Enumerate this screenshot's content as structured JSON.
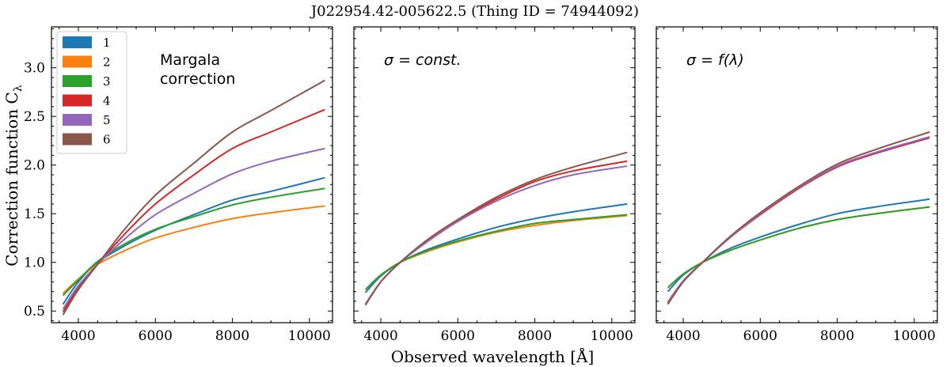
{
  "figure": {
    "suptitle": "J022954.42-005622.5   (Thing ID = 74944092)",
    "xlabel": "Observed wavelength [Å]",
    "ylabel": "Correction function C",
    "ylabel_sub": "λ"
  },
  "legend": {
    "placement": "top-left",
    "entries": [
      "1",
      "2",
      "3",
      "4",
      "5",
      "6"
    ]
  },
  "colors": {
    "1": "#1f77b4",
    "2": "#ff7f0e",
    "3": "#2ca02c",
    "4": "#d62728",
    "5": "#9467bd",
    "6": "#8c564b"
  },
  "chart_data": [
    {
      "type": "line",
      "annotation": [
        "Margala",
        "correction"
      ],
      "xlim": [
        3300,
        10600
      ],
      "ylim": [
        0.38,
        3.42
      ],
      "xticks": [
        4000,
        6000,
        8000,
        10000
      ],
      "yticks": [
        "0.5",
        "1.0",
        "1.5",
        "2.0",
        "2.5",
        "3.0"
      ],
      "x": [
        3600,
        4000,
        4500,
        5200,
        6000,
        7000,
        8000,
        9000,
        10400
      ],
      "series": [
        {
          "name": "1",
          "values": [
            0.57,
            0.8,
            1.0,
            1.17,
            1.33,
            1.49,
            1.64,
            1.73,
            1.87
          ]
        },
        {
          "name": "2",
          "values": [
            0.68,
            0.83,
            0.98,
            1.12,
            1.25,
            1.36,
            1.45,
            1.51,
            1.58
          ]
        },
        {
          "name": "3",
          "values": [
            0.66,
            0.82,
            1.01,
            1.19,
            1.34,
            1.47,
            1.59,
            1.67,
            1.76
          ]
        },
        {
          "name": "4",
          "values": [
            0.49,
            0.74,
            0.98,
            1.29,
            1.6,
            1.9,
            2.17,
            2.34,
            2.57
          ]
        },
        {
          "name": "5",
          "values": [
            0.52,
            0.76,
            0.98,
            1.24,
            1.49,
            1.71,
            1.91,
            2.04,
            2.17
          ]
        },
        {
          "name": "6",
          "values": [
            0.46,
            0.72,
            0.98,
            1.34,
            1.69,
            2.02,
            2.34,
            2.56,
            2.87
          ]
        }
      ]
    },
    {
      "type": "line",
      "annotation": [
        "σ = const."
      ],
      "xlim": [
        3300,
        10600
      ],
      "ylim": [
        0.38,
        3.42
      ],
      "xticks": [
        4000,
        6000,
        8000,
        10000
      ],
      "yticks": [],
      "x": [
        3600,
        4000,
        4500,
        5200,
        6000,
        7000,
        8000,
        9000,
        10400
      ],
      "series": [
        {
          "name": "1",
          "values": [
            0.69,
            0.86,
            1.0,
            1.13,
            1.24,
            1.36,
            1.45,
            1.52,
            1.6
          ]
        },
        {
          "name": "2",
          "values": [
            0.72,
            0.87,
            1.0,
            1.11,
            1.21,
            1.31,
            1.38,
            1.43,
            1.48
          ]
        },
        {
          "name": "3",
          "values": [
            0.72,
            0.87,
            1.0,
            1.12,
            1.22,
            1.32,
            1.4,
            1.44,
            1.49
          ]
        },
        {
          "name": "4",
          "values": [
            0.57,
            0.8,
            1.0,
            1.22,
            1.43,
            1.65,
            1.83,
            1.94,
            2.04
          ]
        },
        {
          "name": "5",
          "values": [
            0.57,
            0.8,
            1.0,
            1.21,
            1.42,
            1.63,
            1.79,
            1.9,
            1.99
          ]
        },
        {
          "name": "6",
          "values": [
            0.56,
            0.8,
            1.0,
            1.23,
            1.44,
            1.67,
            1.85,
            1.98,
            2.13
          ]
        }
      ]
    },
    {
      "type": "line",
      "annotation": [
        "σ = f(λ)"
      ],
      "xlim": [
        3300,
        10600
      ],
      "ylim": [
        0.38,
        3.42
      ],
      "xticks": [
        4000,
        6000,
        8000,
        10000
      ],
      "yticks": [],
      "x": [
        3600,
        4000,
        4500,
        5200,
        6000,
        7000,
        8000,
        9000,
        10400
      ],
      "series": [
        {
          "name": "1",
          "values": [
            0.7,
            0.87,
            1.0,
            1.14,
            1.26,
            1.39,
            1.5,
            1.57,
            1.65
          ]
        },
        {
          "name": "2",
          "values": [
            0.74,
            0.88,
            1.0,
            1.12,
            1.23,
            1.35,
            1.44,
            1.5,
            1.57
          ]
        },
        {
          "name": "3",
          "values": [
            0.74,
            0.88,
            1.0,
            1.12,
            1.23,
            1.35,
            1.44,
            1.5,
            1.57
          ]
        },
        {
          "name": "4",
          "values": [
            0.59,
            0.81,
            1.0,
            1.25,
            1.49,
            1.76,
            1.98,
            2.12,
            2.28
          ]
        },
        {
          "name": "5",
          "values": [
            0.58,
            0.81,
            1.0,
            1.25,
            1.5,
            1.77,
            1.99,
            2.13,
            2.29
          ]
        },
        {
          "name": "6",
          "values": [
            0.57,
            0.8,
            1.0,
            1.26,
            1.51,
            1.78,
            2.01,
            2.16,
            2.34
          ]
        }
      ]
    }
  ]
}
